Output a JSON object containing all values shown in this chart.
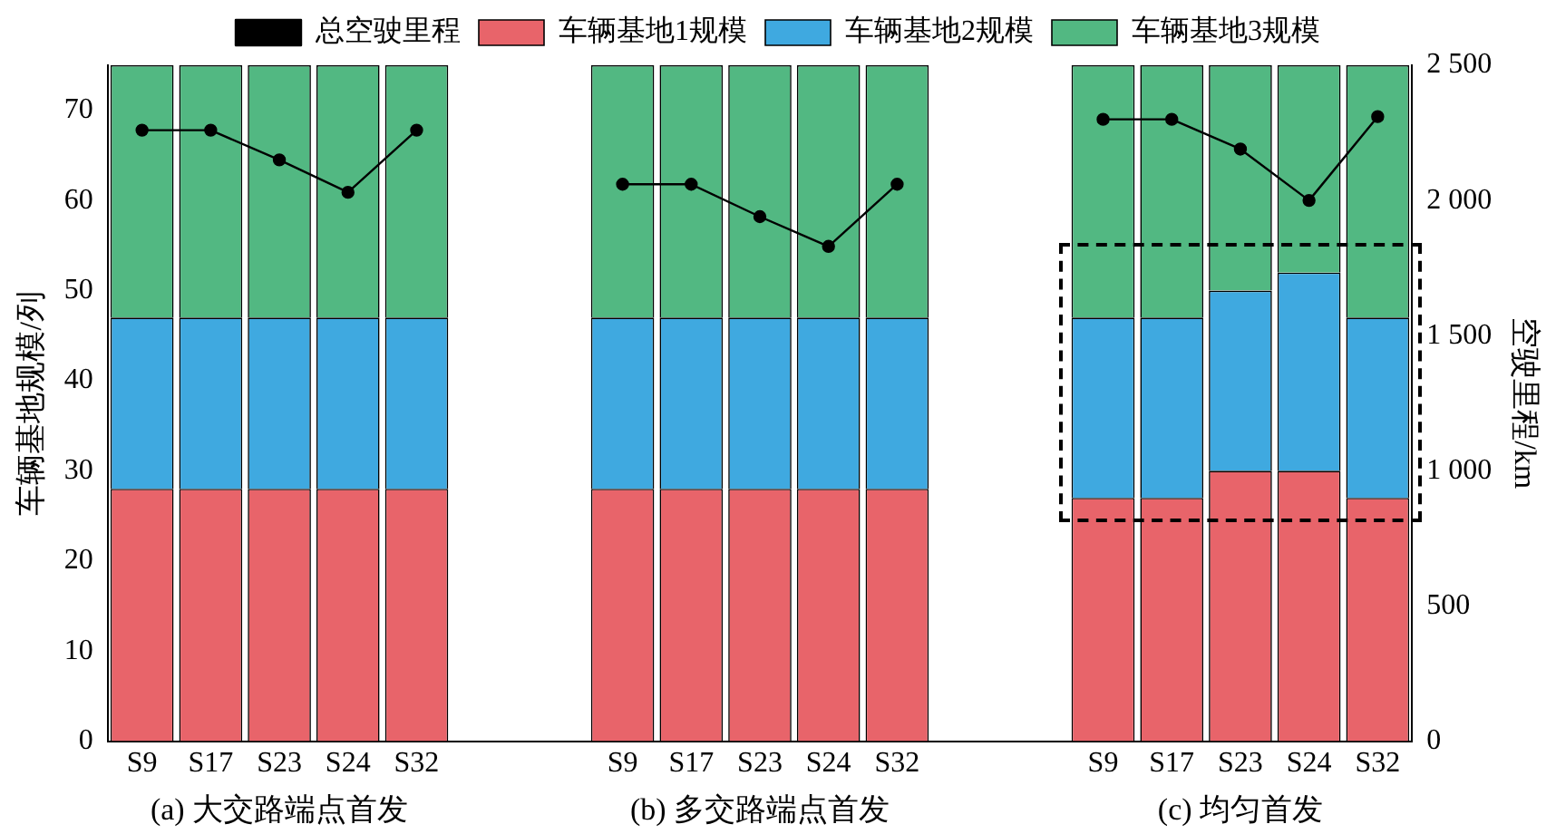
{
  "chart_data": {
    "type": "bar",
    "stacked": true,
    "categories": [
      "S9",
      "S17",
      "S23",
      "S24",
      "S32",
      null,
      null,
      "S9",
      "S17",
      "S23",
      "S24",
      "S32",
      null,
      null,
      "S9",
      "S17",
      "S23",
      "S24",
      "S32"
    ],
    "series": [
      {
        "name": "车辆基地1规模",
        "color": "#e8646a",
        "values": [
          28,
          28,
          28,
          28,
          28,
          null,
          null,
          28,
          28,
          28,
          28,
          28,
          null,
          null,
          27,
          27,
          30,
          30,
          27
        ]
      },
      {
        "name": "车辆基地2规模",
        "color": "#3fa9e0",
        "values": [
          19,
          19,
          19,
          19,
          19,
          null,
          null,
          19,
          19,
          19,
          19,
          19,
          null,
          null,
          20,
          20,
          20,
          22,
          20
        ]
      },
      {
        "name": "车辆基地3规模",
        "color": "#52b882",
        "values": [
          28,
          28,
          28,
          28,
          28,
          null,
          null,
          28,
          28,
          28,
          28,
          28,
          null,
          null,
          28,
          28,
          25,
          23,
          28
        ]
      },
      {
        "name": "总空驶里程",
        "type": "line",
        "axis": "y2",
        "color": "#000000",
        "values": [
          2260,
          2260,
          2150,
          2030,
          2260,
          null,
          null,
          2060,
          2060,
          1940,
          1830,
          2060,
          null,
          null,
          2300,
          2300,
          2190,
          2000,
          2310
        ]
      }
    ],
    "ylim": [
      0,
      75
    ],
    "yticks": [
      0,
      10,
      20,
      30,
      40,
      50,
      60,
      70
    ],
    "y2lim": [
      0,
      2500
    ],
    "y2ticks": [
      0,
      500,
      {
        "value": 1000,
        "label": "1 000"
      },
      {
        "value": 1500,
        "label": "1 500"
      },
      {
        "value": 2000,
        "label": "2 000"
      },
      {
        "value": 2500,
        "label": "2 500"
      }
    ],
    "ylabel": "车辆基地规模/列",
    "y2label": "空驶里程/km",
    "legend": "top",
    "marker": "circle",
    "line_style": "solid",
    "grid": false,
    "annotations": [
      "(a) 大交路端点首发",
      "(b) 多交路端点首发",
      "(c) 均匀首发"
    ]
  }
}
